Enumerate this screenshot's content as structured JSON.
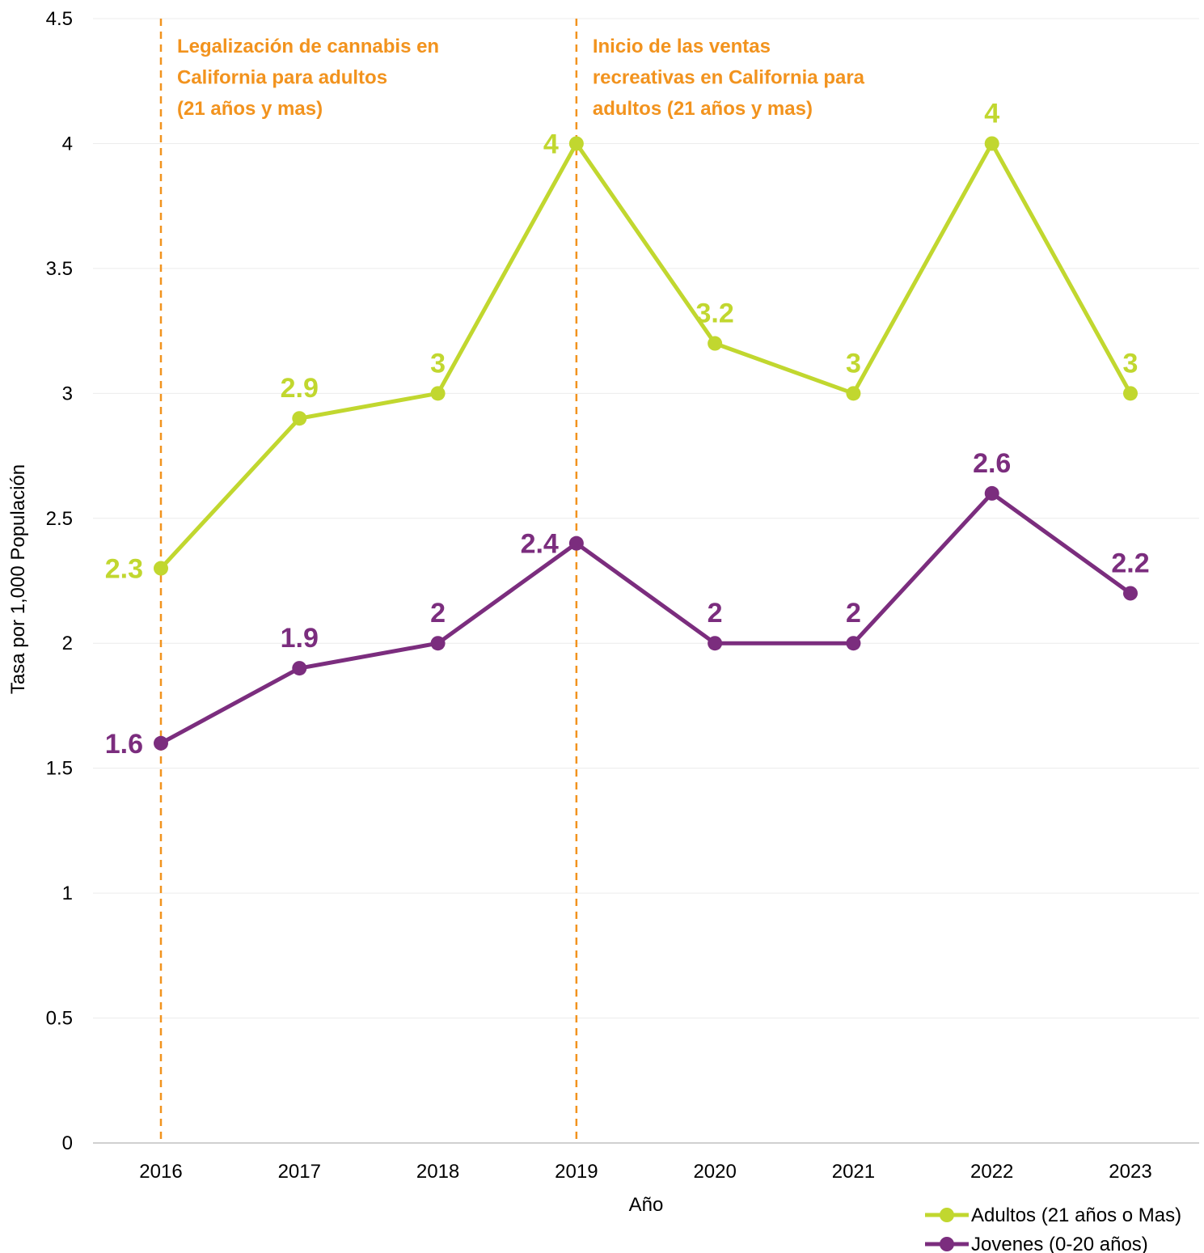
{
  "chart_data": {
    "type": "line",
    "xlabel": "Año",
    "ylabel": "Tasa por 1,000 Populación",
    "ylim": [
      0,
      4.5
    ],
    "yticks": [
      "0",
      "0.5",
      "1",
      "1.5",
      "2",
      "2.5",
      "3",
      "3.5",
      "4",
      "4.5"
    ],
    "categories": [
      "2016",
      "2017",
      "2018",
      "2019",
      "2020",
      "2021",
      "2022",
      "2023"
    ],
    "grid": true,
    "legend_position": "bottom-right",
    "series": [
      {
        "name": "Adultos (21 años o Mas)",
        "color": "#c1d72f",
        "values": [
          2.3,
          2.9,
          3,
          4,
          3.2,
          3,
          4,
          3
        ],
        "labels": [
          "2.3",
          "2.9",
          "3",
          "4",
          "3.2",
          "3",
          "4",
          "3"
        ]
      },
      {
        "name": "Jovenes (0-20 años)",
        "color": "#7b2d7e",
        "values": [
          1.6,
          1.9,
          2,
          2.4,
          2,
          2,
          2.6,
          2.2
        ],
        "labels": [
          "1.6",
          "1.9",
          "2",
          "2.4",
          "2",
          "2",
          "2.6",
          "2.2"
        ]
      }
    ],
    "annotations": [
      {
        "x": "2016",
        "color": "#f2931e",
        "lines": [
          "Legalización de cannabis en",
          "California para adultos",
          "(21 años y mas)"
        ]
      },
      {
        "x": "2019",
        "color": "#f2931e",
        "lines": [
          "Inicio de las ventas",
          "recreativas en California para",
          "adultos (21 años y mas)"
        ]
      }
    ]
  }
}
